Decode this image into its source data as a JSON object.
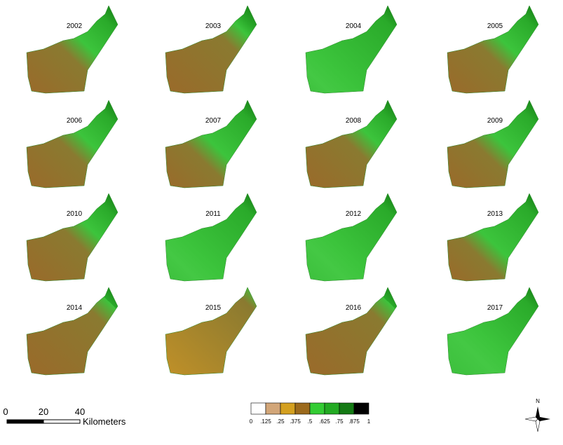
{
  "panels": [
    {
      "year": "2002"
    },
    {
      "year": "2003"
    },
    {
      "year": "2004"
    },
    {
      "year": "2005"
    },
    {
      "year": "2006"
    },
    {
      "year": "2007"
    },
    {
      "year": "2008"
    },
    {
      "year": "2009"
    },
    {
      "year": "2010"
    },
    {
      "year": "2011"
    },
    {
      "year": "2012"
    },
    {
      "year": "2013"
    },
    {
      "year": "2014"
    },
    {
      "year": "2015"
    },
    {
      "year": "2016"
    },
    {
      "year": "2017"
    }
  ],
  "scale_bar": {
    "labels": [
      "0",
      "20",
      "40"
    ],
    "unit": "Kilometers"
  },
  "legend": {
    "labels": [
      "0",
      ".125",
      ".25",
      ".375",
      ".5",
      ".625",
      ".75",
      ".875",
      "1"
    ],
    "colors": [
      "#ffffff",
      "#d2a679",
      "#d4a020",
      "#9c6a1c",
      "#33cc33",
      "#22aa22",
      "#147a14",
      "#000000"
    ]
  },
  "north": "N"
}
